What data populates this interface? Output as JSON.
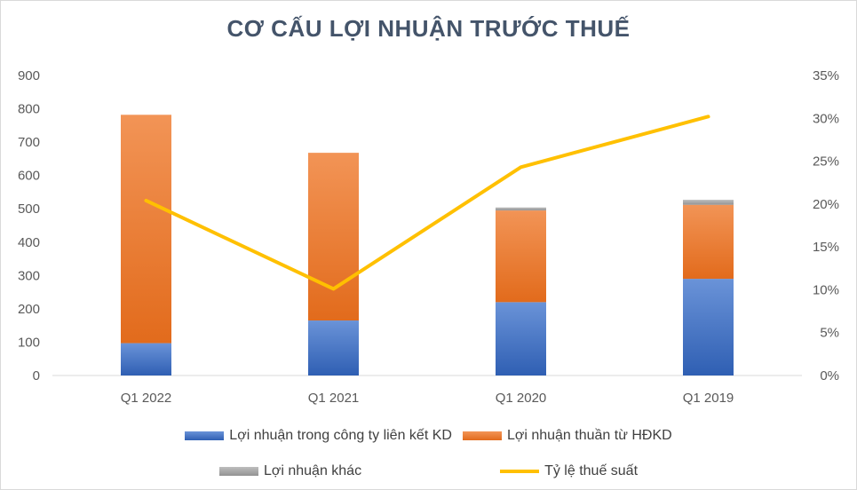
{
  "colors": {
    "series0": "#4472c4",
    "series1": "#ed7d31",
    "series2": "#a5a5a5",
    "line": "#ffc000",
    "grid": "#d9d9d9",
    "title": "#44546a"
  },
  "chart_data": {
    "type": "bar",
    "stacked": true,
    "title": "CƠ CẤU LỢI NHUẬN TRƯỚC THUẾ",
    "categories": [
      "Q1 2022",
      "Q1 2021",
      "Q1 2020",
      "Q1 2019"
    ],
    "series": [
      {
        "name": "Lợi nhuận trong công ty liên kết KD",
        "type": "bar",
        "axis": "left",
        "values": [
          97,
          165,
          220,
          290
        ]
      },
      {
        "name": "Lợi nhuận thuần từ HĐKD",
        "type": "bar",
        "axis": "left",
        "values": [
          685,
          503,
          275,
          222
        ]
      },
      {
        "name": "Lợi nhuận khác",
        "type": "bar",
        "axis": "left",
        "values": [
          0,
          0,
          9,
          15
        ]
      },
      {
        "name": "Tỷ lệ thuế suất",
        "type": "line",
        "axis": "right",
        "values": [
          0.204,
          0.101,
          0.243,
          0.302
        ]
      }
    ],
    "y_left": {
      "ylim": [
        0,
        900
      ],
      "ticks": [
        "0",
        "100",
        "200",
        "300",
        "400",
        "500",
        "600",
        "700",
        "800",
        "900"
      ]
    },
    "y_right": {
      "ylim": [
        0,
        0.35
      ],
      "ticks": [
        "0%",
        "5%",
        "10%",
        "15%",
        "20%",
        "25%",
        "30%",
        "35%"
      ]
    },
    "grid": false,
    "legend_position": "bottom"
  }
}
